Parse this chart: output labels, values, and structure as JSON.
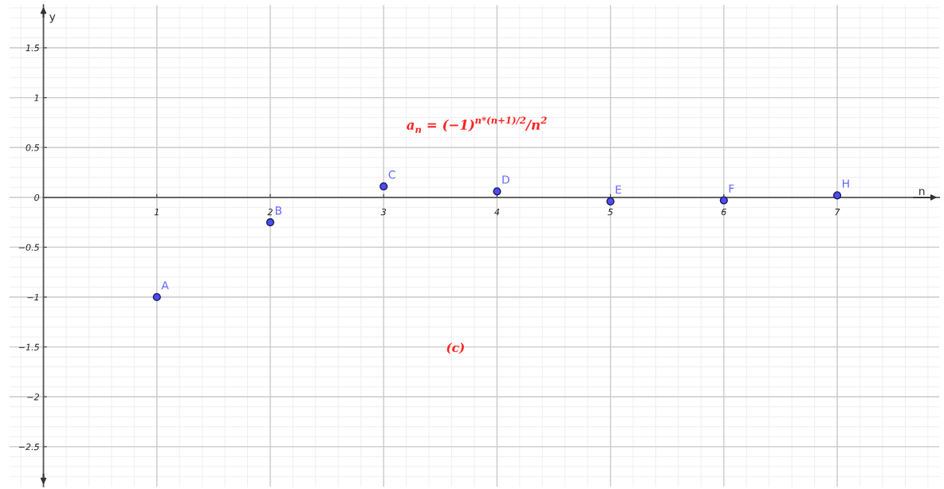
{
  "chart_data": {
    "type": "scatter",
    "xlabel": "n",
    "ylabel": "y",
    "x": [
      1,
      2,
      3,
      4,
      5,
      6,
      7
    ],
    "series": [
      {
        "color": "#4d4dff",
        "values": [
          -1,
          -0.25,
          0.11,
          0.06,
          -0.04,
          -0.03,
          0.02
        ]
      }
    ],
    "xlim": [
      -0.3,
      7.9
    ],
    "ylim": [
      -2.9,
      1.93
    ],
    "xticks": [
      1,
      2,
      3,
      4,
      5,
      6,
      7
    ],
    "yticks": [
      -2.5,
      -2,
      -1.5,
      -1,
      -0.5,
      0,
      0.5,
      1,
      1.5
    ],
    "grid": true,
    "marker": "circle",
    "annotations": [
      {
        "text": "A",
        "x": 1,
        "y": -1
      },
      {
        "text": "B",
        "x": 2,
        "y": -0.25
      },
      {
        "text": "C",
        "x": 3,
        "y": 0.11
      },
      {
        "text": "D",
        "x": 4,
        "y": 0.06
      },
      {
        "text": "E",
        "x": 5,
        "y": -0.04
      },
      {
        "text": "F",
        "x": 6,
        "y": -0.03
      },
      {
        "text": "H",
        "x": 7,
        "y": 0.02
      },
      "a$_{n}$ = (−1)$^{n*(n+1)/2}$/n$^{2}$",
      "(c)"
    ]
  }
}
